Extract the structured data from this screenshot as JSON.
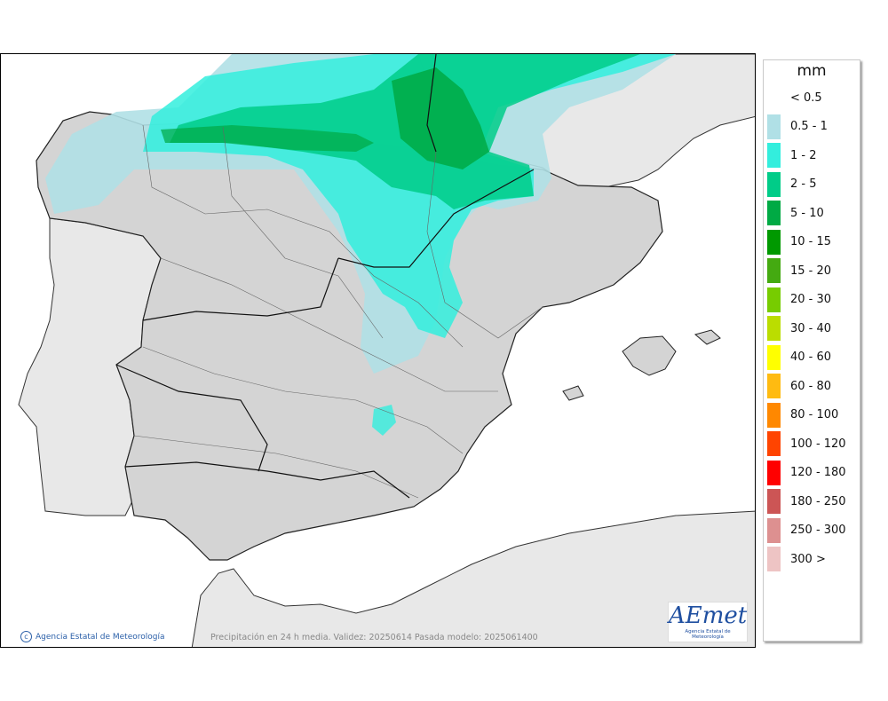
{
  "legend": {
    "unit": "mm",
    "items": [
      {
        "label": "< 0.5",
        "color": "none"
      },
      {
        "label": "0.5 - 1",
        "color": "#b0e0e6"
      },
      {
        "label": "1 - 2",
        "color": "#33eedd"
      },
      {
        "label": "2 - 5",
        "color": "#00cc88"
      },
      {
        "label": "5 - 10",
        "color": "#00aa44"
      },
      {
        "label": "10 - 15",
        "color": "#009900"
      },
      {
        "label": "15 - 20",
        "color": "#44aa11"
      },
      {
        "label": "20 - 30",
        "color": "#77cc00"
      },
      {
        "label": "30 - 40",
        "color": "#bbdd00"
      },
      {
        "label": "40 - 60",
        "color": "#ffff00"
      },
      {
        "label": "60 - 80",
        "color": "#ffbb11"
      },
      {
        "label": "80 - 100",
        "color": "#ff8800"
      },
      {
        "label": "100 - 120",
        "color": "#ff4400"
      },
      {
        "label": "120 - 180",
        "color": "#ff0000"
      },
      {
        "label": "180 - 250",
        "color": "#cc5555"
      },
      {
        "label": "250 - 300",
        "color": "#dd9090"
      },
      {
        "label": "300 >",
        "color": "#eec4c4"
      }
    ]
  },
  "map": {
    "credit": "Agencia Estatal de Meteorología",
    "validity_text": "Precipitación en 24 h media. Validez: 20250614 Pasada modelo: 2025061400",
    "logo_text": "AEmet",
    "logo_subtitle": "Agencia Estatal de Meteorología",
    "colors": {
      "sea": "#ffffff",
      "land_other": "#e8e8e8",
      "land_spain": "#d4d4d4"
    }
  }
}
